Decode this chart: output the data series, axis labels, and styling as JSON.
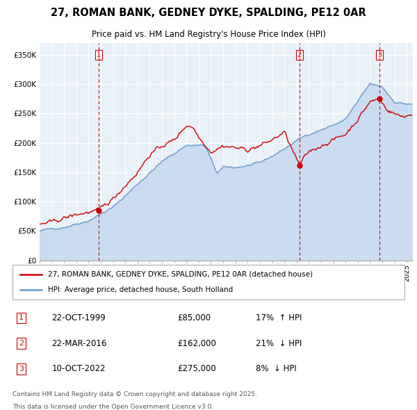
{
  "title_line1": "27, ROMAN BANK, GEDNEY DYKE, SPALDING, PE12 0AR",
  "title_line2": "Price paid vs. HM Land Registry's House Price Index (HPI)",
  "ylabel_values": [
    "£0",
    "£50K",
    "£100K",
    "£150K",
    "£200K",
    "£250K",
    "£300K",
    "£350K"
  ],
  "ytick_values": [
    0,
    50000,
    100000,
    150000,
    200000,
    250000,
    300000,
    350000
  ],
  "ylim": [
    0,
    370000
  ],
  "xlim_start": 1995.0,
  "xlim_end": 2025.5,
  "sale_color": "#cc0000",
  "hpi_color": "#6699cc",
  "hpi_fill_color": "#c8daf0",
  "vline_color": "#cc0000",
  "grid_color": "#cccccc",
  "chart_bg_color": "#e8f0f8",
  "background_color": "#ffffff",
  "transactions": [
    {
      "label": "1",
      "date": "22-OCT-1999",
      "price": 85000,
      "pct": "17%",
      "direction": "↑",
      "x": 1999.81
    },
    {
      "label": "2",
      "date": "22-MAR-2016",
      "price": 162000,
      "pct": "21%",
      "direction": "↓",
      "x": 2016.22
    },
    {
      "label": "3",
      "date": "10-OCT-2022",
      "price": 275000,
      "pct": "8%",
      "direction": "↓",
      "x": 2022.78
    }
  ],
  "footer_line1": "Contains HM Land Registry data © Crown copyright and database right 2025.",
  "footer_line2": "This data is licensed under the Open Government Licence v3.0.",
  "legend_label1": "27, ROMAN BANK, GEDNEY DYKE, SPALDING, PE12 0AR (detached house)",
  "legend_label2": "HPI: Average price, detached house, South Holland"
}
